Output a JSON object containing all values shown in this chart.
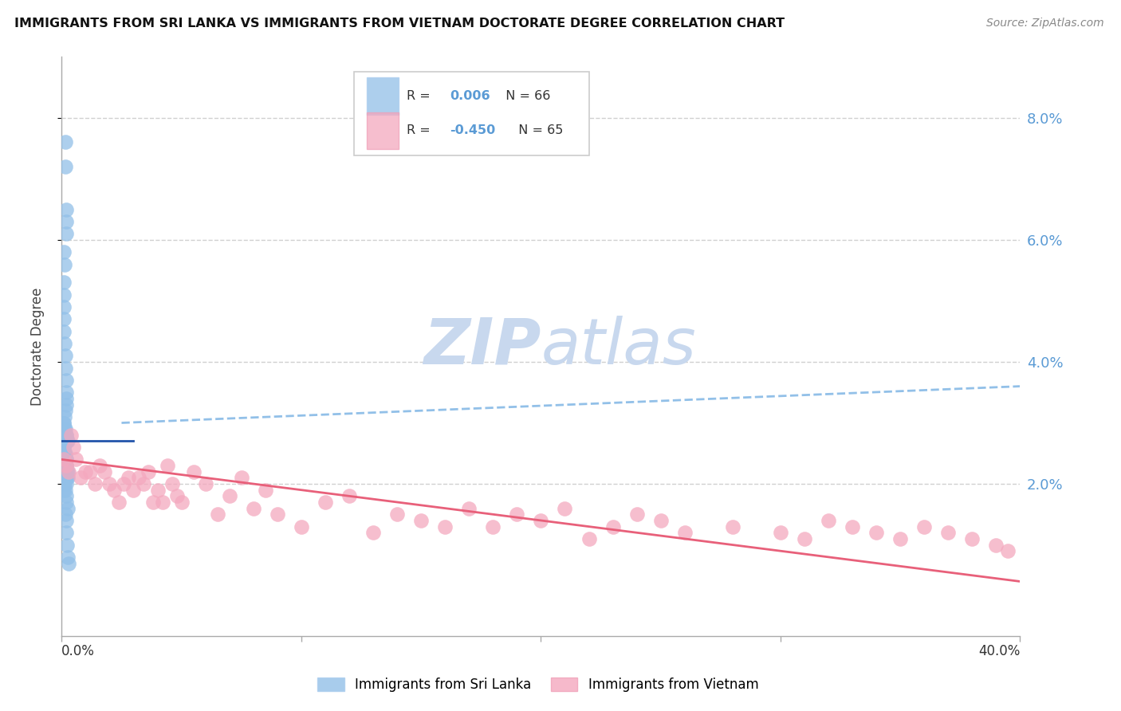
{
  "title": "IMMIGRANTS FROM SRI LANKA VS IMMIGRANTS FROM VIETNAM DOCTORATE DEGREE CORRELATION CHART",
  "source": "Source: ZipAtlas.com",
  "ylabel": "Doctorate Degree",
  "right_yticks": [
    "8.0%",
    "6.0%",
    "4.0%",
    "2.0%"
  ],
  "right_ytick_vals": [
    0.08,
    0.06,
    0.04,
    0.02
  ],
  "xlim": [
    0.0,
    0.4
  ],
  "ylim": [
    -0.005,
    0.09
  ],
  "legend_sri_lanka": "Immigrants from Sri Lanka",
  "legend_vietnam": "Immigrants from Vietnam",
  "r_sri_lanka": "0.006",
  "n_sri_lanka": "66",
  "r_vietnam": "-0.450",
  "n_vietnam": "65",
  "color_sri_lanka": "#92c0e8",
  "color_vietnam": "#f4a8be",
  "line_sri_lanka": "#2255aa",
  "line_vietnam": "#e8607a",
  "dashed_line_color": "#92c0e8",
  "watermark_zip_color": "#c8d8ee",
  "watermark_atlas_color": "#c8d8ee",
  "background_color": "#ffffff",
  "grid_color": "#d0d0d0",
  "right_axis_color": "#5b9bd5",
  "sri_lanka_x": [
    0.0015,
    0.0015,
    0.0018,
    0.002,
    0.002,
    0.001,
    0.0012,
    0.001,
    0.0008,
    0.0008,
    0.0008,
    0.001,
    0.0012,
    0.0015,
    0.0015,
    0.0018,
    0.002,
    0.002,
    0.0018,
    0.0015,
    0.0012,
    0.001,
    0.0008,
    0.0012,
    0.0015,
    0.0018,
    0.002,
    0.0022,
    0.0025,
    0.001,
    0.0008,
    0.001,
    0.0012,
    0.0015,
    0.0018,
    0.002,
    0.0008,
    0.001,
    0.0012,
    0.0015,
    0.0018,
    0.002,
    0.0022,
    0.0025,
    0.0015,
    0.0018,
    0.001,
    0.0012,
    0.0015,
    0.002,
    0.0022,
    0.0025,
    0.0018,
    0.002,
    0.0012,
    0.001,
    0.0015,
    0.0018,
    0.002,
    0.0025,
    0.0015,
    0.0018,
    0.002,
    0.0022,
    0.0025,
    0.003
  ],
  "sri_lanka_y": [
    0.076,
    0.072,
    0.065,
    0.063,
    0.061,
    0.058,
    0.056,
    0.053,
    0.051,
    0.049,
    0.047,
    0.045,
    0.043,
    0.041,
    0.039,
    0.037,
    0.035,
    0.034,
    0.033,
    0.032,
    0.031,
    0.03,
    0.03,
    0.029,
    0.029,
    0.028,
    0.028,
    0.027,
    0.027,
    0.026,
    0.026,
    0.025,
    0.025,
    0.025,
    0.024,
    0.024,
    0.024,
    0.024,
    0.023,
    0.023,
    0.023,
    0.023,
    0.022,
    0.022,
    0.022,
    0.022,
    0.022,
    0.022,
    0.021,
    0.021,
    0.021,
    0.021,
    0.021,
    0.02,
    0.02,
    0.019,
    0.019,
    0.018,
    0.017,
    0.016,
    0.015,
    0.014,
    0.012,
    0.01,
    0.008,
    0.007
  ],
  "vietnam_x": [
    0.001,
    0.002,
    0.003,
    0.004,
    0.005,
    0.006,
    0.008,
    0.01,
    0.012,
    0.014,
    0.016,
    0.018,
    0.02,
    0.022,
    0.024,
    0.026,
    0.028,
    0.03,
    0.032,
    0.034,
    0.036,
    0.038,
    0.04,
    0.042,
    0.044,
    0.046,
    0.048,
    0.05,
    0.055,
    0.06,
    0.065,
    0.07,
    0.075,
    0.08,
    0.085,
    0.09,
    0.1,
    0.11,
    0.12,
    0.13,
    0.14,
    0.15,
    0.16,
    0.17,
    0.18,
    0.19,
    0.2,
    0.21,
    0.22,
    0.23,
    0.24,
    0.25,
    0.26,
    0.28,
    0.3,
    0.31,
    0.32,
    0.33,
    0.34,
    0.35,
    0.36,
    0.37,
    0.38,
    0.39,
    0.395
  ],
  "vietnam_y": [
    0.024,
    0.023,
    0.022,
    0.028,
    0.026,
    0.024,
    0.021,
    0.022,
    0.022,
    0.02,
    0.023,
    0.022,
    0.02,
    0.019,
    0.017,
    0.02,
    0.021,
    0.019,
    0.021,
    0.02,
    0.022,
    0.017,
    0.019,
    0.017,
    0.023,
    0.02,
    0.018,
    0.017,
    0.022,
    0.02,
    0.015,
    0.018,
    0.021,
    0.016,
    0.019,
    0.015,
    0.013,
    0.017,
    0.018,
    0.012,
    0.015,
    0.014,
    0.013,
    0.016,
    0.013,
    0.015,
    0.014,
    0.016,
    0.011,
    0.013,
    0.015,
    0.014,
    0.012,
    0.013,
    0.012,
    0.011,
    0.014,
    0.013,
    0.012,
    0.011,
    0.013,
    0.012,
    0.011,
    0.01,
    0.009
  ],
  "sl_line_x0": 0.0,
  "sl_line_x1": 0.03,
  "sl_line_y0": 0.027,
  "sl_line_y1": 0.027,
  "dashed_line_x0": 0.025,
  "dashed_line_x1": 0.4,
  "dashed_line_y0": 0.03,
  "dashed_line_y1": 0.036,
  "vn_line_x0": 0.0,
  "vn_line_x1": 0.4,
  "vn_line_y0": 0.024,
  "vn_line_y1": 0.004
}
